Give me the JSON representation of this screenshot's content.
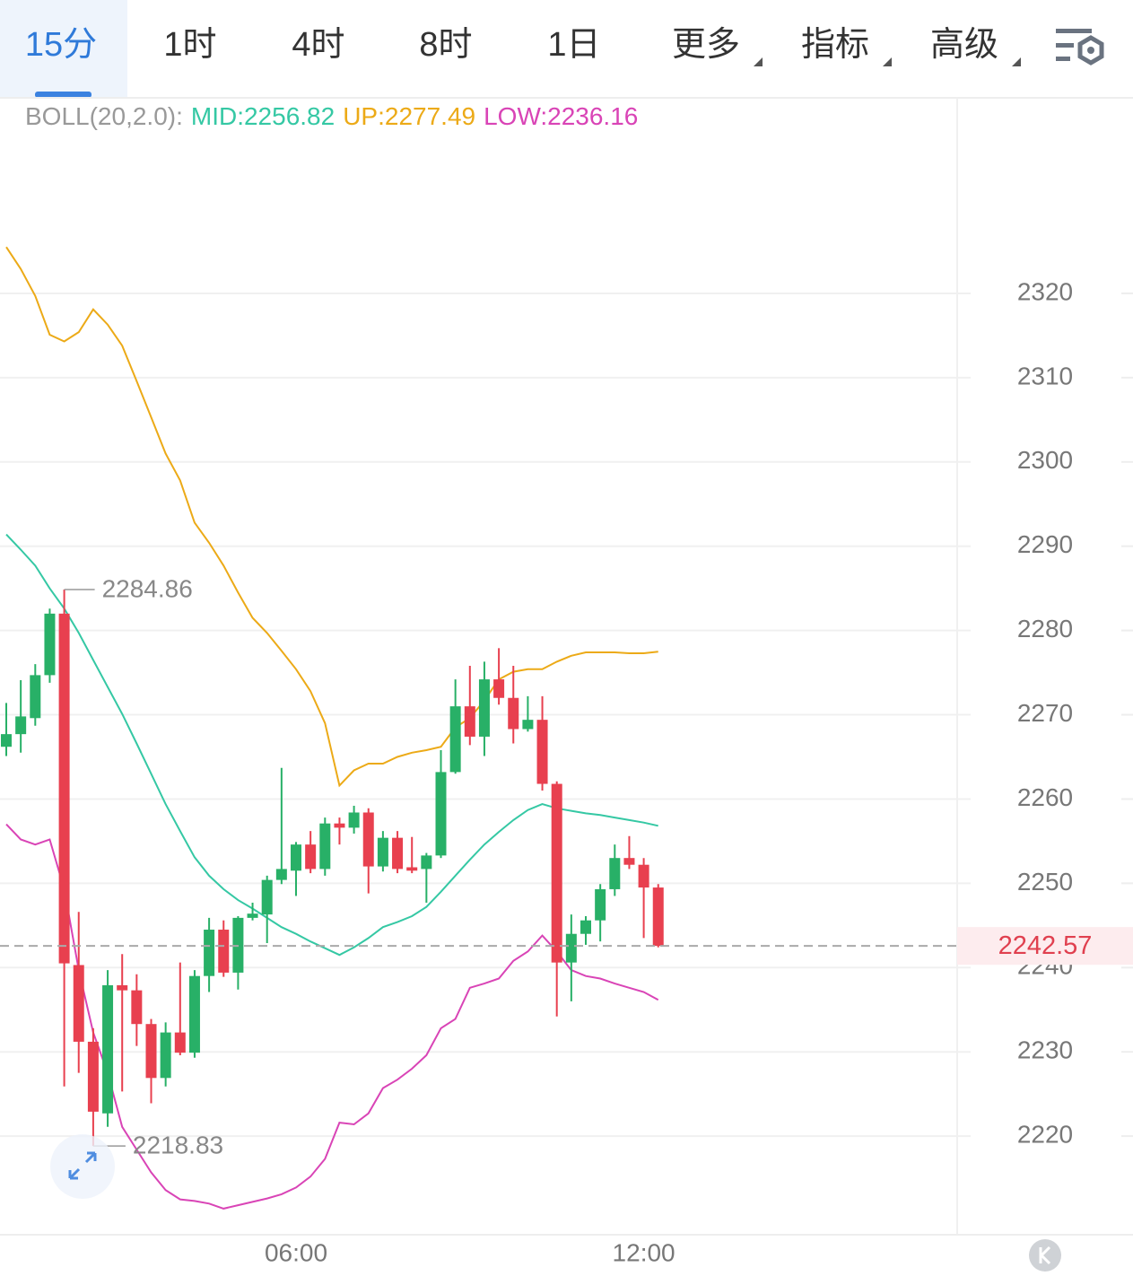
{
  "tabs": [
    "15分",
    "1时",
    "4时",
    "8时",
    "1日",
    "更多",
    "指标",
    "高级"
  ],
  "selected_tab": 0,
  "chart_data": {
    "type": "candlestick",
    "categories": [
      null,
      null,
      null,
      null,
      null,
      null,
      null,
      null,
      null,
      null,
      null,
      null,
      null,
      null,
      null,
      null,
      null,
      null,
      null,
      null,
      "06:00",
      null,
      null,
      null,
      null,
      null,
      null,
      null,
      null,
      null,
      null,
      null,
      null,
      null,
      null,
      null,
      null,
      null,
      null,
      null,
      null,
      null,
      null,
      null,
      "12:00",
      null
    ],
    "open": [
      2266.2,
      2267.7,
      2269.6,
      2274.7,
      2282.0,
      2240.3,
      2231.2,
      2222.7,
      2237.9,
      2237.3,
      2233.3,
      2226.9,
      2232.3,
      2229.9,
      2239.0,
      2244.5,
      2239.4,
      2245.9,
      2246.3,
      2250.4,
      2251.5,
      2254.6,
      2251.7,
      2257.1,
      2256.6,
      2258.4,
      2252.0,
      2255.4,
      2251.9,
      2251.7,
      2253.3,
      2263.2,
      2271.0,
      2267.4,
      2274.2,
      2272.0,
      2268.3,
      2269.4,
      2261.8,
      2240.6,
      2244.0,
      2245.6,
      2249.3,
      2253.0,
      2252.2,
      2249.5
    ],
    "high": [
      2271.4,
      2274.1,
      2276.0,
      2282.6,
      2284.86,
      2246.6,
      2232.8,
      2239.7,
      2241.6,
      2239.2,
      2233.9,
      2233.5,
      2240.6,
      2239.7,
      2245.9,
      2245.6,
      2246.1,
      2247.7,
      2250.9,
      2263.7,
      2254.9,
      2256.2,
      2257.8,
      2257.8,
      2259.2,
      2258.9,
      2256.2,
      2256.2,
      2255.5,
      2253.6,
      2265.8,
      2274.2,
      2275.8,
      2276.3,
      2277.9,
      2275.8,
      2272.2,
      2272.2,
      2262.1,
      2246.3,
      2246.1,
      2249.9,
      2254.6,
      2255.6,
      2253.0,
      2249.9
    ],
    "low": [
      2265.1,
      2265.5,
      2268.7,
      2273.8,
      2225.9,
      2227.5,
      2218.83,
      2221.1,
      2225.3,
      2230.7,
      2223.9,
      2225.9,
      2229.6,
      2229.3,
      2237.1,
      2238.9,
      2237.4,
      2245.6,
      2242.9,
      2249.9,
      2248.5,
      2251.2,
      2250.9,
      2254.6,
      2255.9,
      2248.8,
      2251.4,
      2251.2,
      2251.2,
      2247.7,
      2253.0,
      2263.0,
      2266.4,
      2265.1,
      2271.2,
      2266.6,
      2268.0,
      2261.0,
      2234.2,
      2236.0,
      2242.7,
      2243.1,
      2248.5,
      2251.7,
      2243.5,
      2242.4
    ],
    "close": [
      2267.7,
      2269.8,
      2274.7,
      2282.0,
      2240.5,
      2231.2,
      2222.9,
      2237.9,
      2237.3,
      2233.3,
      2226.9,
      2232.3,
      2229.9,
      2239.0,
      2244.5,
      2239.4,
      2245.9,
      2246.4,
      2250.4,
      2251.7,
      2254.6,
      2251.7,
      2257.1,
      2256.6,
      2258.4,
      2252.0,
      2255.4,
      2251.7,
      2251.5,
      2253.3,
      2263.2,
      2271.0,
      2267.4,
      2274.2,
      2272.0,
      2268.3,
      2269.4,
      2261.8,
      2240.6,
      2244.0,
      2245.6,
      2249.3,
      2253.0,
      2252.2,
      2249.5,
      2242.57
    ],
    "up_color": "#28b067",
    "down_color": "#e8404f",
    "indicator": {
      "title": "BOLL(20,2.0):",
      "series": [
        {
          "name": "MID:2256.82",
          "color": "#35c8a4",
          "values": [
            2291.4,
            2289.6,
            2287.7,
            2285.0,
            2282.6,
            2279.7,
            2276.5,
            2273.3,
            2270.1,
            2266.6,
            2263.0,
            2259.4,
            2256.2,
            2253.1,
            2250.9,
            2249.3,
            2248.0,
            2247.0,
            2245.9,
            2244.8,
            2244.0,
            2243.1,
            2242.3,
            2241.5,
            2242.4,
            2243.5,
            2244.8,
            2245.4,
            2246.1,
            2247.2,
            2249.0,
            2250.9,
            2252.8,
            2254.6,
            2256.1,
            2257.5,
            2258.7,
            2259.4,
            2258.9,
            2258.6,
            2258.3,
            2258.1,
            2257.8,
            2257.5,
            2257.2,
            2256.82
          ]
        },
        {
          "name": "UP:2277.49",
          "color": "#ecaa17",
          "values": [
            2325.5,
            2322.9,
            2319.7,
            2315.1,
            2314.3,
            2315.4,
            2318.1,
            2316.3,
            2313.8,
            2309.6,
            2305.3,
            2301.0,
            2297.8,
            2292.8,
            2290.4,
            2287.7,
            2284.5,
            2281.5,
            2279.7,
            2277.6,
            2275.4,
            2272.8,
            2269.0,
            2261.6,
            2263.4,
            2264.2,
            2264.2,
            2265.0,
            2265.5,
            2265.8,
            2266.2,
            2268.5,
            2269.6,
            2271.7,
            2274.2,
            2275.1,
            2275.4,
            2275.4,
            2276.3,
            2277.0,
            2277.4,
            2277.4,
            2277.4,
            2277.3,
            2277.3,
            2277.49
          ]
        },
        {
          "name": "LOW:2236.16",
          "color": "#d944b6",
          "values": [
            2257.0,
            2255.2,
            2254.6,
            2255.2,
            2249.3,
            2239.7,
            2232.3,
            2227.5,
            2221.1,
            2218.4,
            2215.7,
            2213.6,
            2212.5,
            2212.3,
            2212.0,
            2211.4,
            2211.8,
            2212.2,
            2212.6,
            2213.1,
            2213.9,
            2215.2,
            2217.3,
            2221.6,
            2221.4,
            2222.7,
            2225.7,
            2226.7,
            2228.0,
            2229.6,
            2232.8,
            2233.9,
            2237.6,
            2238.1,
            2238.7,
            2240.8,
            2241.9,
            2243.8,
            2241.9,
            2239.7,
            2239.0,
            2238.7,
            2238.1,
            2237.6,
            2237.1,
            2236.16
          ]
        }
      ]
    },
    "ylim": [
      2208.3,
      2343.1
    ],
    "yticks": [
      2220,
      2230,
      2240,
      2250,
      2260,
      2270,
      2280,
      2290,
      2300,
      2310,
      2320
    ],
    "grid": true
  }
}
